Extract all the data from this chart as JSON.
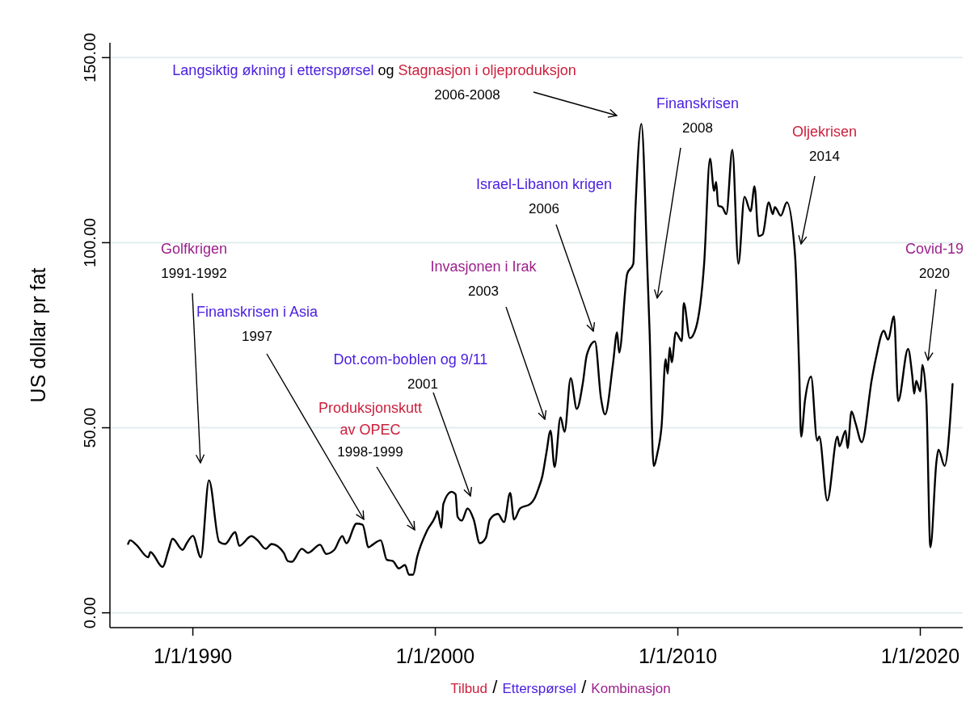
{
  "chart_data": {
    "type": "line",
    "ylabel": "US dollar pr fat",
    "xlim": [
      "1986-08",
      "2021-10"
    ],
    "ylim": [
      -4,
      154
    ],
    "xticks": [
      {
        "value": "1990-01-01",
        "label": "1/1/1990"
      },
      {
        "value": "2000-01-01",
        "label": "1/1/2000"
      },
      {
        "value": "2010-01-01",
        "label": "1/1/2010"
      },
      {
        "value": "2020-01-01",
        "label": "1/1/2020"
      }
    ],
    "yticks": [
      {
        "value": 0,
        "label": "0.00"
      },
      {
        "value": 50,
        "label": "50.00"
      },
      {
        "value": 100,
        "label": "100.00"
      },
      {
        "value": 150,
        "label": "150.00"
      }
    ],
    "grid": "y",
    "series": [
      {
        "color": "#000000",
        "x": [
          "1987-05",
          "1987-06",
          "1987-09",
          "1988-03",
          "1988-04",
          "1988-10",
          "1989-01",
          "1989-03",
          "1989-08",
          "1989-10",
          "1990-01",
          "1990-05",
          "1990-09",
          "1991-02",
          "1991-05",
          "1991-10",
          "1991-12",
          "1992-06",
          "1992-09",
          "1993-01",
          "1993-04",
          "1993-10",
          "1993-12",
          "1994-02",
          "1994-07",
          "1994-10",
          "1995-04",
          "1995-07",
          "1995-11",
          "1996-03",
          "1996-05",
          "1996-10",
          "1997-01",
          "1997-04",
          "1997-06",
          "1997-10",
          "1998-01",
          "1998-04",
          "1998-07",
          "1998-10",
          "1998-12",
          "1999-02",
          "1999-04",
          "1999-09",
          "2000-01",
          "2000-02",
          "2000-04",
          "2000-05",
          "2000-09",
          "2000-11",
          "2000-12",
          "2001-02",
          "2001-05",
          "2001-08",
          "2001-11",
          "2002-02",
          "2002-04",
          "2002-08",
          "2002-11",
          "2003-02",
          "2003-04",
          "2003-07",
          "2003-12",
          "2004-02",
          "2004-04",
          "2004-06",
          "2004-08",
          "2004-10",
          "2004-12",
          "2005-03",
          "2005-05",
          "2005-08",
          "2005-11",
          "2006-02",
          "2006-04",
          "2006-08",
          "2006-11",
          "2007-01",
          "2007-05",
          "2007-07",
          "2007-08",
          "2007-12",
          "2008-03",
          "2008-04",
          "2008-07",
          "2008-10",
          "2008-11",
          "2009-01",
          "2009-03",
          "2009-05",
          "2009-07",
          "2009-08",
          "2009-09",
          "2009-10",
          "2009-12",
          "2010-03",
          "2010-04",
          "2010-07",
          "2010-10",
          "2011-02",
          "2011-05",
          "2011-07",
          "2011-08",
          "2011-09",
          "2011-11",
          "2012-01",
          "2012-04",
          "2012-07",
          "2012-10",
          "2013-01",
          "2013-03",
          "2013-05",
          "2013-07",
          "2013-10",
          "2013-12",
          "2014-01",
          "2014-04",
          "2014-07",
          "2014-11",
          "2015-01",
          "2015-02",
          "2015-04",
          "2015-07",
          "2015-10",
          "2015-11",
          "2016-03",
          "2016-08",
          "2016-09",
          "2016-12",
          "2017-01",
          "2017-03",
          "2017-05",
          "2017-08",
          "2018-01",
          "2018-03",
          "2018-07",
          "2018-09",
          "2018-12",
          "2019-02",
          "2019-07",
          "2019-09",
          "2019-10",
          "2019-11",
          "2020-01",
          "2020-02",
          "2020-04",
          "2020-06",
          "2020-09",
          "2020-10",
          "2021-01",
          "2021-05"
        ],
        "values": [
          18.6,
          19.6,
          18.4,
          15,
          16.4,
          12.4,
          17,
          20,
          17,
          18.8,
          20.8,
          15,
          35.8,
          19.2,
          18.6,
          21.8,
          18.1,
          20.7,
          19.6,
          17.3,
          18.6,
          16.2,
          14,
          13.8,
          17.3,
          16.2,
          18.4,
          15.9,
          17,
          20.7,
          18.8,
          24.1,
          23.8,
          17.7,
          18.4,
          19.6,
          14.3,
          14,
          12,
          12.9,
          10.3,
          10.3,
          15,
          22.3,
          26,
          27.5,
          23,
          29.4,
          32.7,
          32,
          26,
          24.9,
          28.2,
          25.2,
          18.8,
          20.3,
          25.2,
          26.7,
          24.5,
          32.4,
          25.2,
          28.2,
          29.4,
          30.8,
          33.5,
          37,
          43.3,
          49.2,
          39.4,
          52.8,
          48.9,
          63.4,
          55.1,
          62.2,
          69.7,
          73.3,
          57.9,
          53.6,
          67.4,
          75.8,
          70.3,
          91.6,
          94.3,
          108.5,
          132.1,
          92,
          76.4,
          39.7,
          43.3,
          50.4,
          68.6,
          64.6,
          71.7,
          67.7,
          75.8,
          73.4,
          83.7,
          74.2,
          77,
          94.3,
          122.7,
          114,
          116.4,
          110,
          109.6,
          107.7,
          125.1,
          94.3,
          112.4,
          108.5,
          115.2,
          101.8,
          102.2,
          110.9,
          107.7,
          109.6,
          107.3,
          110.9,
          96.7,
          66.8,
          47.6,
          57.5,
          63.8,
          46.5,
          47.6,
          30.3,
          47.6,
          45,
          49.2,
          44.5,
          54.4,
          51.2,
          46.1,
          63.1,
          68.6,
          76.2,
          73.8,
          80.1,
          57.2,
          71.3,
          64.2,
          59.2,
          62.7,
          59.8,
          67,
          57.5,
          17.7,
          41,
          44.1,
          39.7,
          61.8
        ]
      }
    ],
    "annotations": [
      "Golfkrigen\n1991-1992",
      "Finanskrisen i Asia\n1997",
      "Produksjonskutt\nav OPEC\n1998-1999",
      "Dot.com-boblen og 9/11\n2001",
      "Invasjonen i Irak\n2003",
      "Israel-Libanon krigen\n2006",
      "Langsiktig økning i etterspørsel og Stagnasjon i oljeproduksjon\n2006-2008",
      "Finanskrisen\n2008",
      "Oljekrisen\n2014",
      "Covid-19\n2020",
      "Tilbud / Etterspørsel / Kombinasjon"
    ]
  }
}
